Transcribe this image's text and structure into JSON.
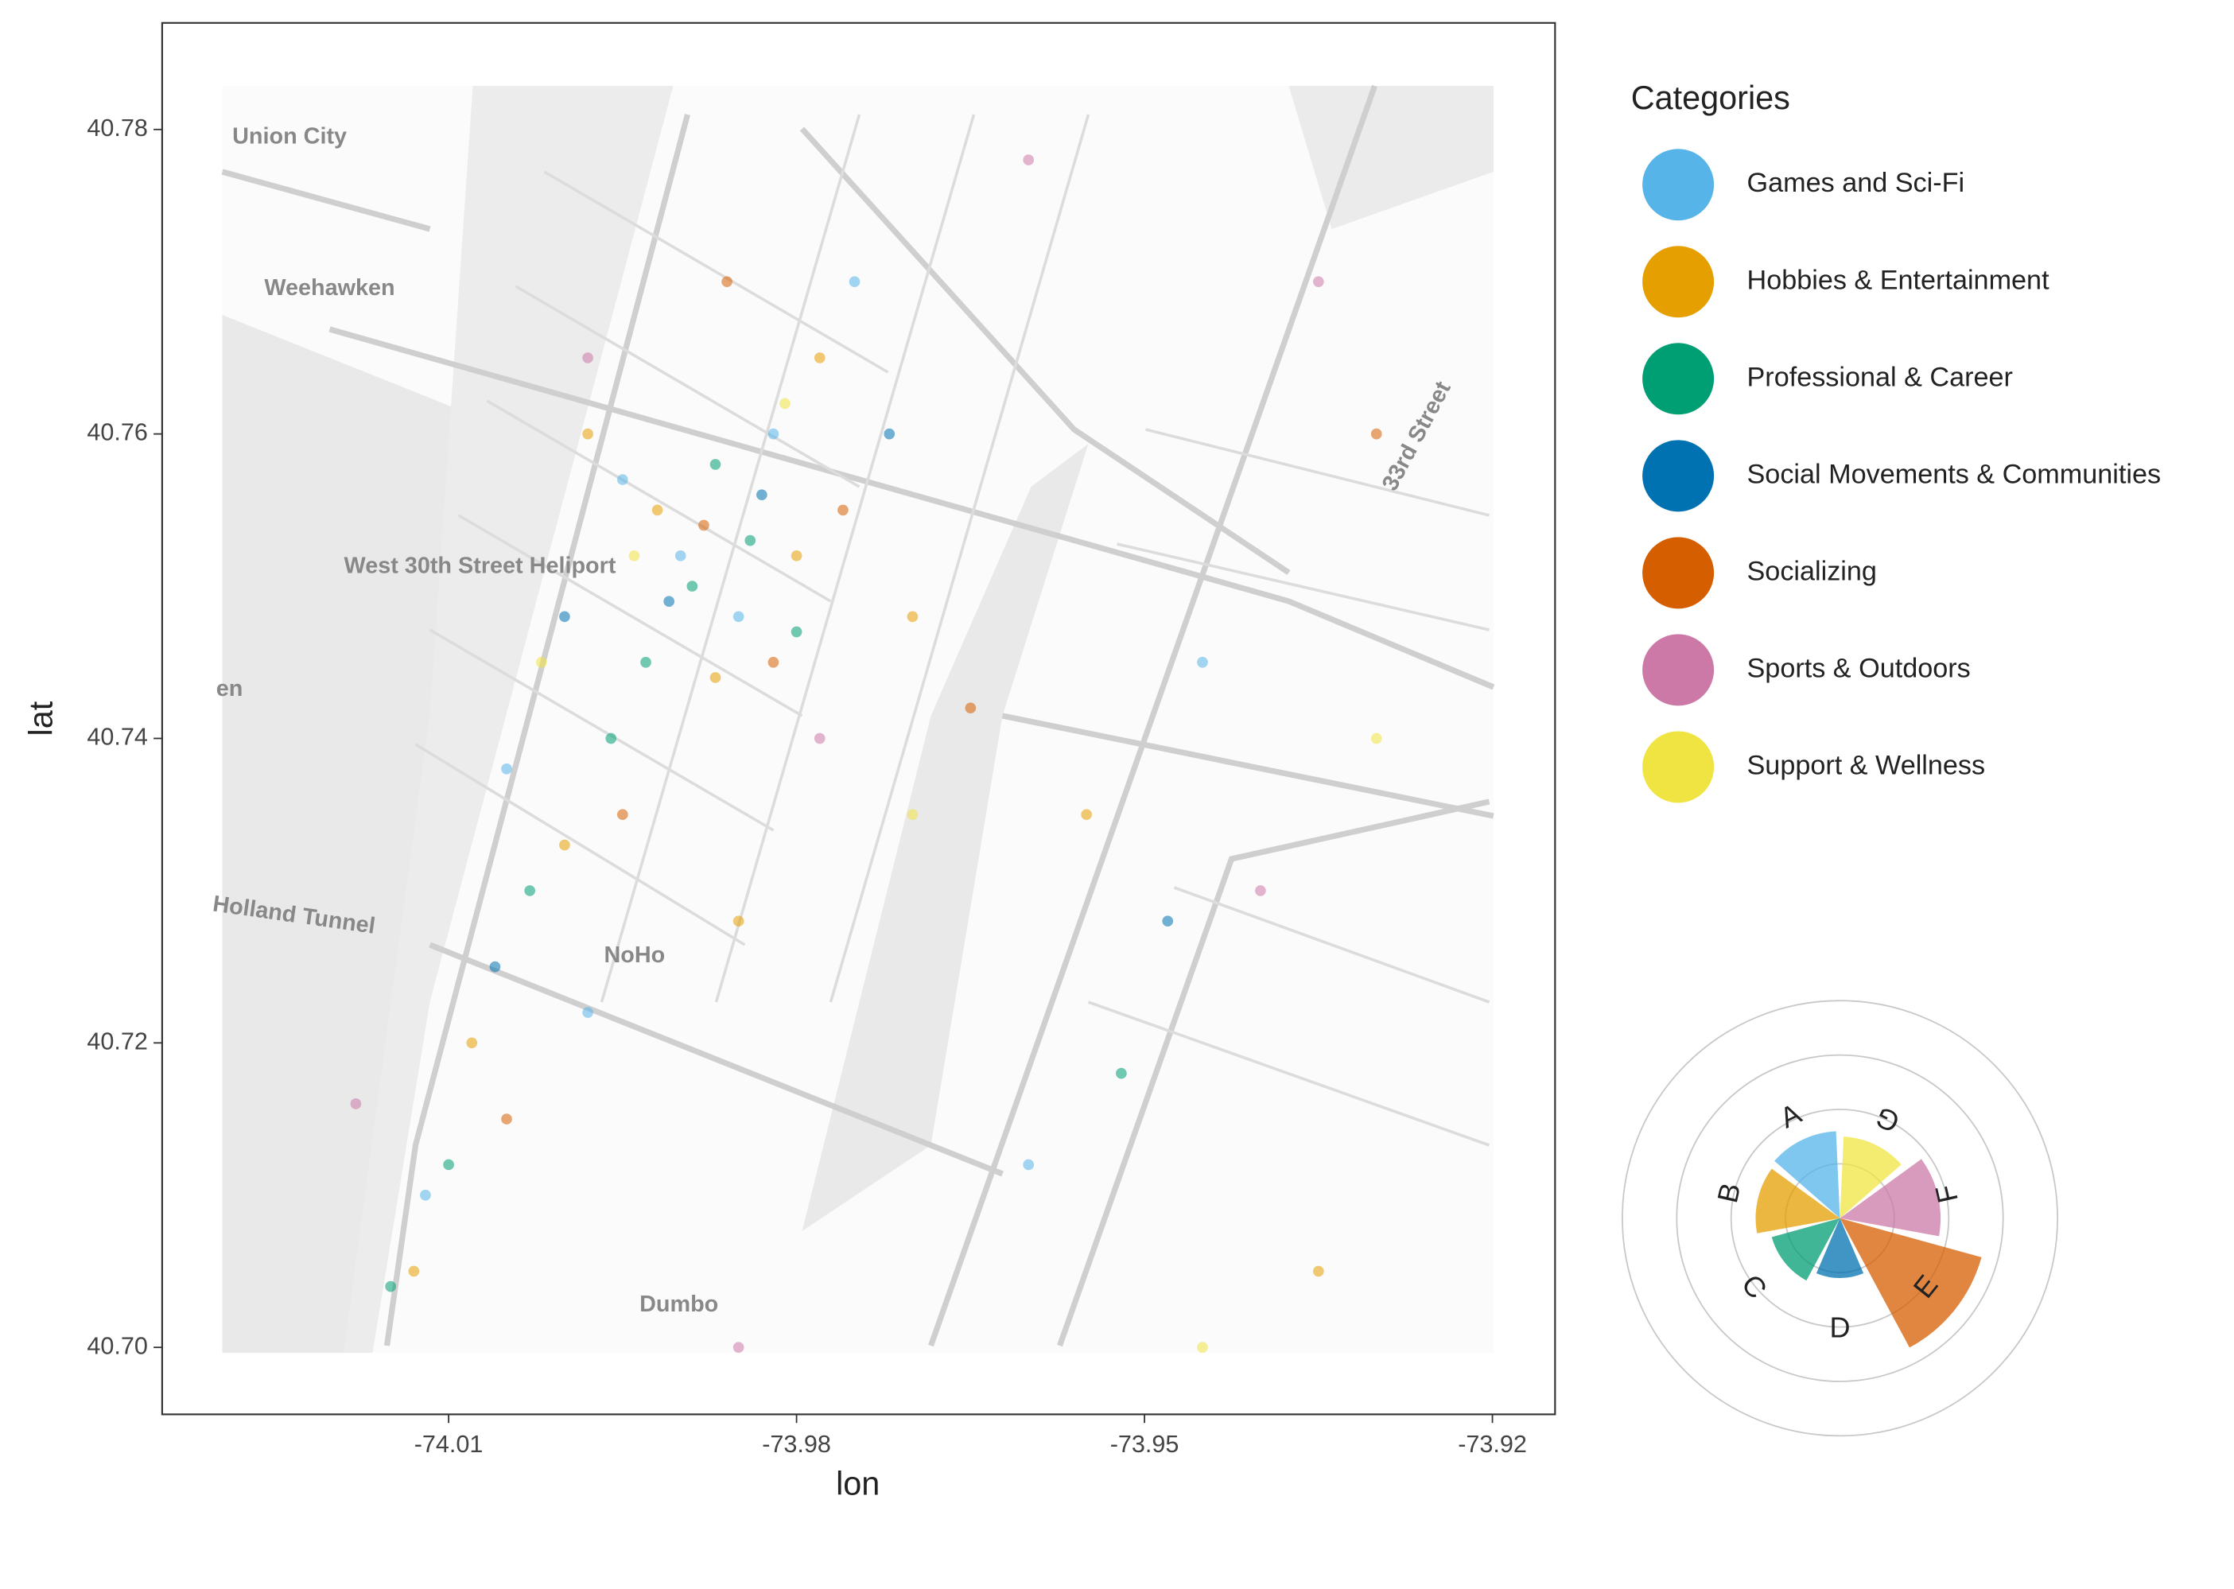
{
  "chart_data": [
    {
      "type": "scatter",
      "xlabel": "lon",
      "ylabel": "lat",
      "xlim": [
        -74.0347,
        -73.9146
      ],
      "ylim": [
        40.6956,
        40.787
      ],
      "xticks": [
        -74.01,
        -73.98,
        -73.95,
        -73.92
      ],
      "yticks": [
        {
          "value": 40.7,
          "label": "40.70"
        },
        40.72,
        40.74,
        40.76,
        40.78
      ],
      "legend_title": "Categories",
      "legend": "right",
      "map_labels": [
        "Union City",
        "Weehawken",
        "West 30th Street Heliport",
        "en",
        "Holland Tunnel",
        "NoHo",
        "Dumbo",
        "33rd Street"
      ],
      "series": [
        {
          "name": "Games and Sci-Fi",
          "color": "#56b4e9",
          "x": [
            -73.99,
            -73.985,
            -73.995,
            -74.005,
            -73.982,
            -73.96,
            -73.945,
            -73.998,
            -74.012,
            -73.975
          ],
          "values": [
            40.752,
            40.748,
            40.757,
            40.738,
            40.76,
            40.712,
            40.745,
            40.722,
            40.71,
            40.77
          ]
        },
        {
          "name": "Hobbies & Entertainment",
          "color": "#e69f00",
          "x": [
            -73.992,
            -73.987,
            -74.0,
            -73.98,
            -73.978,
            -74.008,
            -73.97,
            -73.955,
            -73.935,
            -73.998,
            -73.985,
            -74.013
          ],
          "values": [
            40.755,
            40.744,
            40.733,
            40.752,
            40.765,
            40.72,
            40.748,
            40.735,
            40.705,
            40.76,
            40.728,
            40.705
          ]
        },
        {
          "name": "Professional & Career",
          "color": "#009e73",
          "x": [
            -73.989,
            -73.984,
            -73.993,
            -73.987,
            -74.003,
            -74.01,
            -73.996,
            -73.98,
            -74.015,
            -73.952
          ],
          "values": [
            40.75,
            40.753,
            40.745,
            40.758,
            40.73,
            40.712,
            40.74,
            40.747,
            40.704,
            40.718
          ]
        },
        {
          "name": "Social Movements & Communities",
          "color": "#0072b2",
          "x": [
            -73.991,
            -73.983,
            -74.006,
            -73.972,
            -73.948,
            -74.0
          ],
          "values": [
            40.749,
            40.756,
            40.725,
            40.76,
            40.728,
            40.748
          ]
        },
        {
          "name": "Socializing",
          "color": "#d55e00",
          "x": [
            -73.988,
            -73.982,
            -73.995,
            -73.976,
            -73.965,
            -74.005,
            -73.93,
            -73.986
          ],
          "values": [
            40.754,
            40.745,
            40.735,
            40.755,
            40.742,
            40.715,
            40.76,
            40.77
          ]
        },
        {
          "name": "Sports & Outdoors",
          "color": "#cc79a7",
          "x": [
            -73.998,
            -73.978,
            -73.96,
            -73.935,
            -74.018,
            -73.94,
            -73.985
          ],
          "values": [
            40.765,
            40.74,
            40.778,
            40.77,
            40.716,
            40.73,
            40.7
          ]
        },
        {
          "name": "Support & Wellness",
          "color": "#f0e442",
          "x": [
            -73.994,
            -73.981,
            -73.97,
            -73.945,
            -74.002,
            -73.93
          ],
          "values": [
            40.752,
            40.762,
            40.735,
            40.7,
            40.745,
            40.74
          ]
        }
      ]
    },
    {
      "type": "polar_bar",
      "categories": [
        "A",
        "B",
        "C",
        "D",
        "E",
        "F",
        "G"
      ],
      "values": [
        1.6,
        1.55,
        1.3,
        1.1,
        2.7,
        1.85,
        1.5
      ],
      "colors": [
        "#56b4e9",
        "#e69f00",
        "#009e73",
        "#0072b2",
        "#d55e00",
        "#cc79a7",
        "#f0e442"
      ],
      "rlim": [
        0,
        4
      ],
      "rticks": [
        1,
        2,
        3,
        4
      ]
    }
  ]
}
